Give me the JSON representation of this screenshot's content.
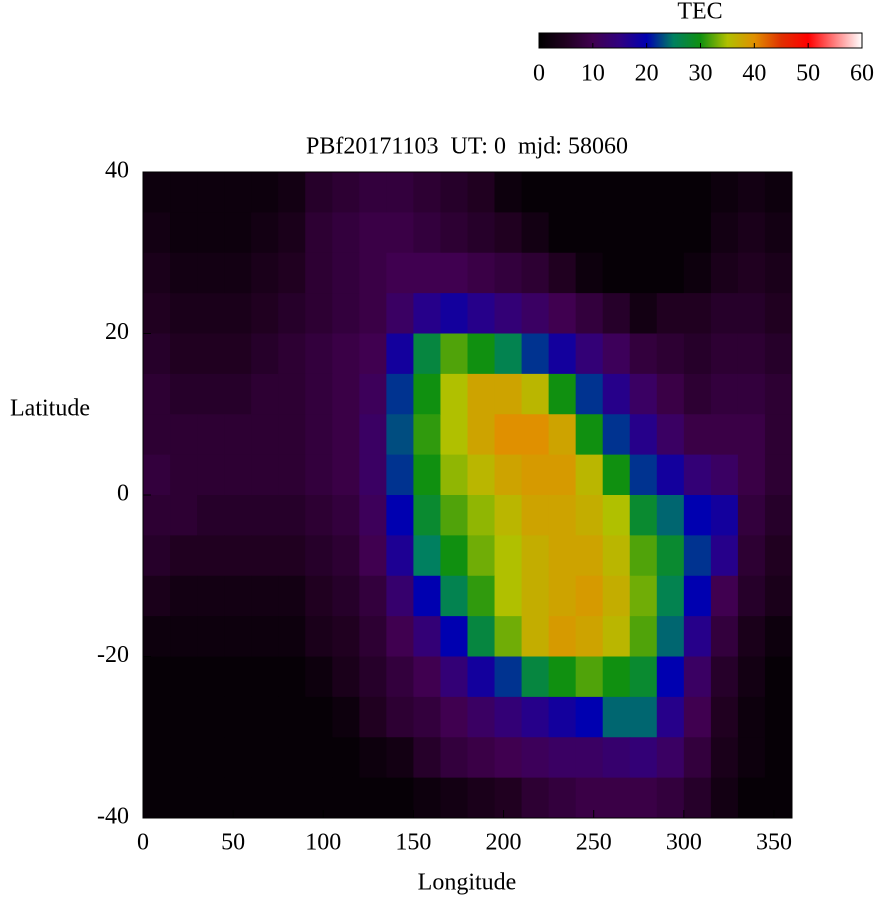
{
  "chart_data": {
    "type": "heatmap",
    "title": "PBf20171103  UT: 0  mjd: 58060",
    "x_label": "Longitude",
    "y_label": "Latitude",
    "xlim": [
      0,
      360
    ],
    "xticks": [
      0,
      50,
      100,
      150,
      200,
      250,
      300,
      350
    ],
    "ylim": [
      -40,
      40
    ],
    "yticks": [
      -40,
      -20,
      0,
      20,
      40
    ],
    "x": [
      7.5,
      22.5,
      37.5,
      52.5,
      67.5,
      82.5,
      97.5,
      112.5,
      127.5,
      142.5,
      157.5,
      172.5,
      187.5,
      202.5,
      217.5,
      232.5,
      247.5,
      262.5,
      277.5,
      292.5,
      307.5,
      322.5,
      337.5,
      352.5
    ],
    "y": [
      37.5,
      32.5,
      27.5,
      22.5,
      17.5,
      12.5,
      7.5,
      2.5,
      -2.5,
      -7.5,
      -12.5,
      -17.5,
      -22.5,
      -27.5,
      -32.5,
      -37.5
    ],
    "z": [
      [
        2,
        2,
        2,
        2,
        2,
        3,
        6,
        7,
        8,
        8,
        7,
        6,
        5,
        2,
        1,
        1,
        1,
        1,
        1,
        1,
        1,
        2,
        3,
        2
      ],
      [
        3,
        2,
        2,
        2,
        3,
        4,
        7,
        8,
        9,
        9,
        8,
        7,
        6,
        5,
        3,
        1,
        1,
        1,
        1,
        1,
        1,
        3,
        4,
        3
      ],
      [
        4,
        3,
        3,
        3,
        4,
        5,
        7,
        8,
        9,
        10,
        10,
        10,
        9,
        8,
        7,
        5,
        2,
        1,
        1,
        1,
        2,
        4,
        5,
        4
      ],
      [
        5,
        4,
        4,
        4,
        5,
        6,
        7,
        8,
        9,
        12,
        16,
        18,
        16,
        14,
        12,
        10,
        8,
        6,
        3,
        5,
        5,
        6,
        6,
        5
      ],
      [
        6,
        5,
        5,
        5,
        6,
        7,
        8,
        9,
        10,
        18,
        27,
        32,
        30,
        26,
        22,
        18,
        14,
        11,
        8,
        7,
        6,
        7,
        7,
        6
      ],
      [
        7,
        6,
        6,
        6,
        7,
        7,
        8,
        9,
        11,
        22,
        30,
        35,
        38,
        38,
        36,
        30,
        22,
        16,
        12,
        9,
        7,
        8,
        8,
        7
      ],
      [
        7,
        7,
        7,
        7,
        7,
        7,
        8,
        9,
        12,
        23,
        31,
        35,
        38,
        40,
        40,
        38,
        30,
        22,
        16,
        12,
        9,
        9,
        9,
        7
      ],
      [
        8,
        7,
        7,
        7,
        7,
        7,
        8,
        9,
        12,
        22,
        30,
        34,
        36,
        38,
        39,
        39,
        36,
        30,
        22,
        18,
        14,
        12,
        9,
        7
      ],
      [
        7,
        7,
        6,
        6,
        6,
        6,
        7,
        8,
        11,
        20,
        28,
        32,
        34,
        36,
        38,
        38,
        37,
        35,
        28,
        24,
        20,
        18,
        8,
        6
      ],
      [
        6,
        5,
        5,
        5,
        5,
        5,
        6,
        7,
        10,
        17,
        25,
        30,
        33,
        35,
        37,
        38,
        38,
        36,
        32,
        28,
        22,
        16,
        7,
        5
      ],
      [
        4,
        3,
        3,
        3,
        3,
        3,
        5,
        6,
        8,
        13,
        20,
        26,
        31,
        35,
        37,
        38,
        39,
        37,
        33,
        26,
        20,
        10,
        6,
        4
      ],
      [
        2,
        2,
        2,
        2,
        2,
        2,
        4,
        5,
        7,
        10,
        14,
        20,
        27,
        33,
        37,
        39,
        38,
        36,
        32,
        24,
        16,
        8,
        4,
        2
      ],
      [
        1,
        1,
        1,
        1,
        1,
        1,
        2,
        4,
        6,
        8,
        10,
        14,
        18,
        22,
        27,
        30,
        32,
        30,
        28,
        20,
        12,
        6,
        3,
        1
      ],
      [
        1,
        1,
        1,
        1,
        1,
        1,
        1,
        2,
        5,
        7,
        8,
        10,
        12,
        14,
        16,
        18,
        20,
        24,
        24,
        16,
        10,
        5,
        2,
        1
      ],
      [
        1,
        1,
        1,
        1,
        1,
        1,
        1,
        1,
        2,
        3,
        6,
        8,
        9,
        10,
        11,
        12,
        12,
        13,
        14,
        12,
        8,
        4,
        2,
        1
      ],
      [
        1,
        1,
        1,
        1,
        1,
        1,
        1,
        1,
        1,
        1,
        2,
        3,
        4,
        5,
        7,
        8,
        9,
        9,
        9,
        8,
        6,
        3,
        1,
        1
      ]
    ],
    "colorbar_label": "TEC",
    "clim": [
      0,
      60
    ],
    "cticks": [
      0,
      10,
      20,
      30,
      40,
      50,
      60
    ],
    "colormap": [
      "#000000",
      "#200020",
      "#400050",
      "#300080",
      "#0000b0",
      "#008060",
      "#109010",
      "#b0c000",
      "#e09000",
      "#e03000",
      "#ff0000",
      "#ff8080",
      "#ffffff"
    ]
  }
}
